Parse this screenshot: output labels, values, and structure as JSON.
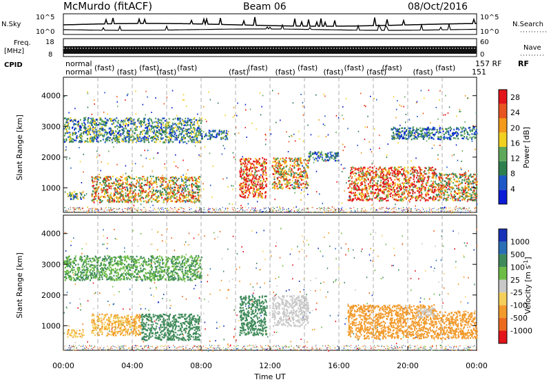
{
  "header": {
    "station": "McMurdo (fitACF)",
    "beam": "Beam 06",
    "date": "08/Oct/2016"
  },
  "strips": {
    "nsky": {
      "label": "N.Sky",
      "ticks": [
        "10^5",
        "10^0"
      ]
    },
    "nsearch": {
      "label": "N.Search",
      "ticks": [
        "10^5",
        "10^0"
      ]
    },
    "freq": {
      "label_top": "Freq.",
      "label_bottom": "[MHz]",
      "ticks": [
        "18",
        "8"
      ]
    },
    "nave": {
      "label": "Nave",
      "ticks": [
        "60",
        "0"
      ]
    },
    "cpid": {
      "label": "CPID",
      "right_label": "RF",
      "row1_text": "normal",
      "row2_text": "normal",
      "repeat_text": "(fast)",
      "right_text": "157 RF",
      "right_text2": "151"
    }
  },
  "chart_data": [
    {
      "type": "heatmap",
      "title": "",
      "ylabel": "Slant Range [km]",
      "xlabel": "",
      "xlim": [
        "00:00",
        "24:00"
      ],
      "ylim": [
        200,
        4600
      ],
      "yticks": [
        "1000",
        "2000",
        "3000",
        "4000"
      ],
      "colorbar": {
        "label": "Power [dB]",
        "ticks": [
          "4",
          "8",
          "12",
          "16",
          "20",
          "24",
          "28"
        ],
        "range": [
          0,
          30
        ],
        "colors": [
          "#0b1bd6",
          "#1e58c8",
          "#2e7f4e",
          "#5fa85a",
          "#f2d020",
          "#f39a1a",
          "#e85520",
          "#e3141a"
        ]
      },
      "echo_regions": [
        {
          "t_start": 0.2,
          "t_end": 1.2,
          "r_min": 650,
          "r_max": 900,
          "value": 12
        },
        {
          "t_start": 1.6,
          "t_end": 7.9,
          "r_min": 550,
          "r_max": 1400,
          "value": 18
        },
        {
          "t_start": 0.0,
          "t_end": 8.0,
          "r_min": 2500,
          "r_max": 3300,
          "value": 10
        },
        {
          "t_start": 8.0,
          "t_end": 9.5,
          "r_min": 2600,
          "r_max": 2900,
          "value": 8
        },
        {
          "t_start": 10.2,
          "t_end": 11.8,
          "r_min": 700,
          "r_max": 2000,
          "value": 26
        },
        {
          "t_start": 12.1,
          "t_end": 14.2,
          "r_min": 1000,
          "r_max": 2000,
          "value": 18
        },
        {
          "t_start": 14.2,
          "t_end": 16.0,
          "r_min": 1900,
          "r_max": 2200,
          "value": 8
        },
        {
          "t_start": 16.5,
          "t_end": 21.6,
          "r_min": 600,
          "r_max": 1700,
          "value": 24
        },
        {
          "t_start": 21.6,
          "t_end": 24.0,
          "r_min": 600,
          "r_max": 1500,
          "value": 18
        },
        {
          "t_start": 19.0,
          "t_end": 24.0,
          "r_min": 2600,
          "r_max": 3000,
          "value": 8
        }
      ]
    },
    {
      "type": "heatmap",
      "title": "",
      "ylabel": "Slant Range [km]",
      "xlabel": "Time UT",
      "xlim": [
        "00:00",
        "24:00"
      ],
      "ylim": [
        200,
        4600
      ],
      "yticks": [
        "1000",
        "2000",
        "3000",
        "4000"
      ],
      "xticks": [
        "00:00",
        "04:00",
        "08:00",
        "12:00",
        "16:00",
        "20:00",
        "00:00"
      ],
      "colorbar": {
        "label": "Velocity [m s^-1]",
        "ticks": [
          "1000",
          "500",
          "100",
          "25",
          "-25",
          "-100",
          "-500",
          "-1000"
        ],
        "colors": [
          "#1732b8",
          "#2a6fb5",
          "#3f8a5a",
          "#6dbd45",
          "#c8c8c8",
          "#f4cf5a",
          "#f29b2c",
          "#ec6a1d",
          "#e3141a"
        ]
      },
      "echo_regions": [
        {
          "t_start": 0.2,
          "t_end": 1.2,
          "r_min": 650,
          "r_max": 900,
          "value": -100
        },
        {
          "t_start": 1.6,
          "t_end": 4.5,
          "r_min": 700,
          "r_max": 1400,
          "value": -100
        },
        {
          "t_start": 4.5,
          "t_end": 7.9,
          "r_min": 550,
          "r_max": 1400,
          "value": 300
        },
        {
          "t_start": 0.0,
          "t_end": 8.0,
          "r_min": 2500,
          "r_max": 3300,
          "value": 100
        },
        {
          "t_start": 10.2,
          "t_end": 11.8,
          "r_min": 700,
          "r_max": 2000,
          "value": 300
        },
        {
          "t_start": 12.1,
          "t_end": 14.2,
          "r_min": 1000,
          "r_max": 2000,
          "value": 0
        },
        {
          "t_start": 16.5,
          "t_end": 21.6,
          "r_min": 600,
          "r_max": 1700,
          "value": -300
        },
        {
          "t_start": 21.6,
          "t_end": 24.0,
          "r_min": 600,
          "r_max": 1500,
          "value": -300
        },
        {
          "t_start": 20.5,
          "t_end": 21.5,
          "r_min": 1300,
          "r_max": 1600,
          "value": 0
        }
      ]
    }
  ],
  "xaxis": {
    "label": "Time UT",
    "ticks": [
      "00:00",
      "04:00",
      "08:00",
      "12:00",
      "16:00",
      "20:00",
      "00:00"
    ]
  }
}
